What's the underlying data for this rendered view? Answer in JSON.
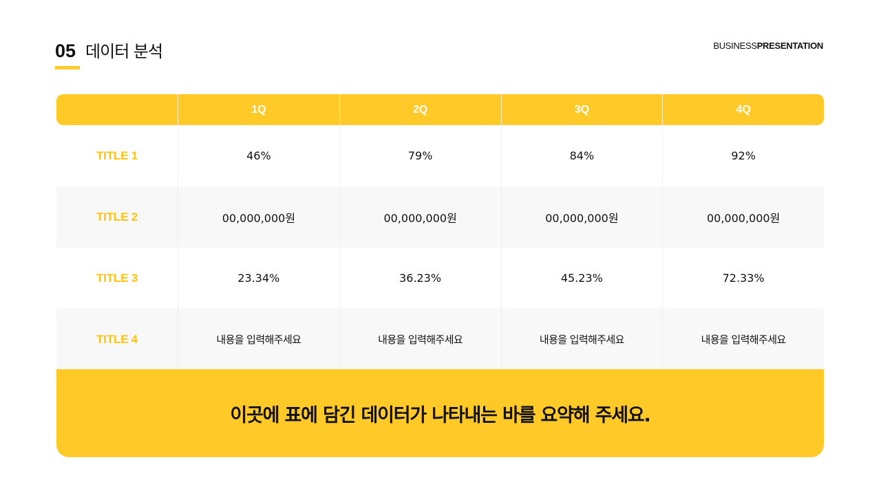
{
  "header": {
    "number": "05",
    "title": "데이터 분석",
    "brand_light": "BUSINESS",
    "brand_bold": "PRESENTATION"
  },
  "colors": {
    "accent": "#FFC928",
    "label": "#FFC20E",
    "alt_row": "#F8F8F9"
  },
  "table": {
    "columns": [
      "",
      "1Q",
      "2Q",
      "3Q",
      "4Q"
    ],
    "rows": [
      {
        "label": "TITLE 1",
        "values": [
          "46%",
          "79%",
          "84%",
          "92%"
        ]
      },
      {
        "label": "TITLE 2",
        "values": [
          "00,000,000원",
          "00,000,000원",
          "00,000,000원",
          "00,000,000원"
        ]
      },
      {
        "label": "TITLE 3",
        "values": [
          "23.34%",
          "36.23%",
          "45.23%",
          "72.33%"
        ]
      },
      {
        "label": "TITLE 4",
        "values": [
          "내용을 입력해주세요",
          "내용을 입력해주세요",
          "내용을 입력해주세요",
          "내용을 입력해주세요"
        ]
      }
    ]
  },
  "summary": {
    "text": "이곳에 표에 담긴 데이터가 나타내는 바를 요약해 주세요."
  }
}
